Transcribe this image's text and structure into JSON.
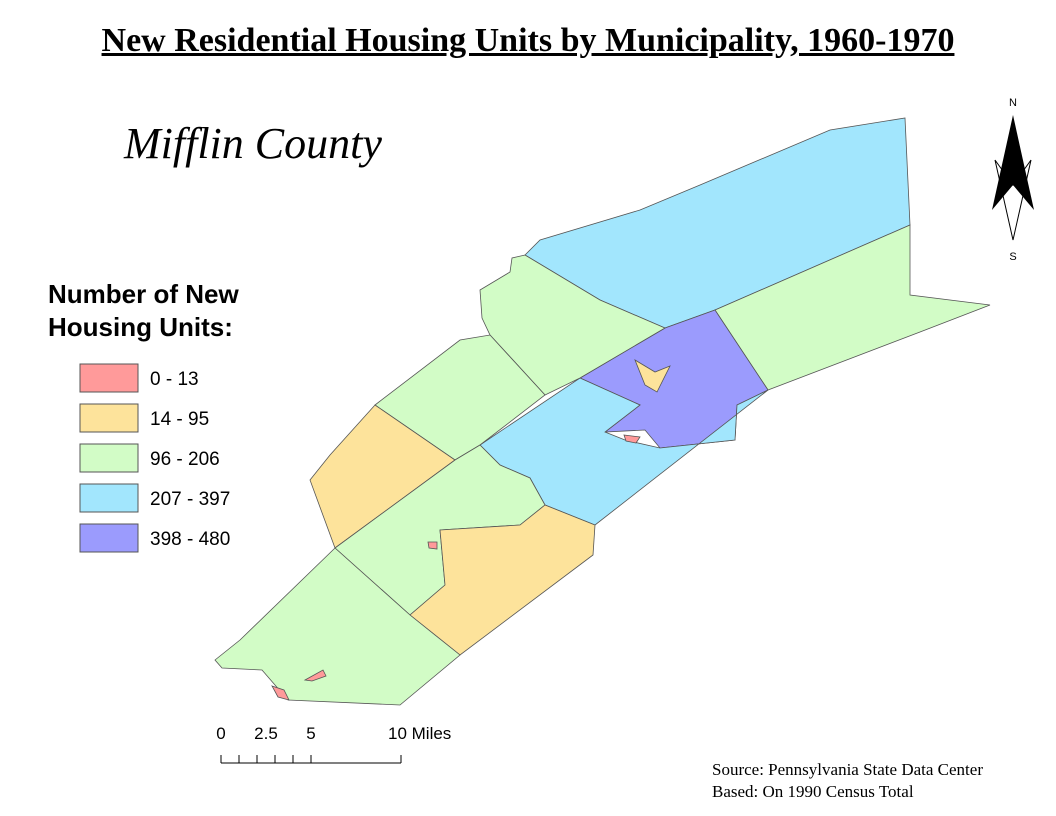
{
  "title": "New Residential Housing Units by Municipality, 1960-1970",
  "subtitle": "Mifflin County",
  "legend": {
    "title": "Number of New Housing Units:",
    "items": [
      {
        "label": "0 - 13",
        "color": "#ff9a9a"
      },
      {
        "label": "14 - 95",
        "color": "#fde39b"
      },
      {
        "label": "96 - 206",
        "color": "#d2fcc6"
      },
      {
        "label": "207 - 397",
        "color": "#a2e6fd"
      },
      {
        "label": "398 - 480",
        "color": "#9b9bfd"
      }
    ]
  },
  "scale_bar": {
    "labels": [
      "0",
      "2.5",
      "5",
      "10 Miles"
    ]
  },
  "north_arrow": {
    "north": "N",
    "south": "S"
  },
  "source": [
    "Source: Pennsylvania State Data Center",
    "Based: On 1990 Census Total"
  ]
}
